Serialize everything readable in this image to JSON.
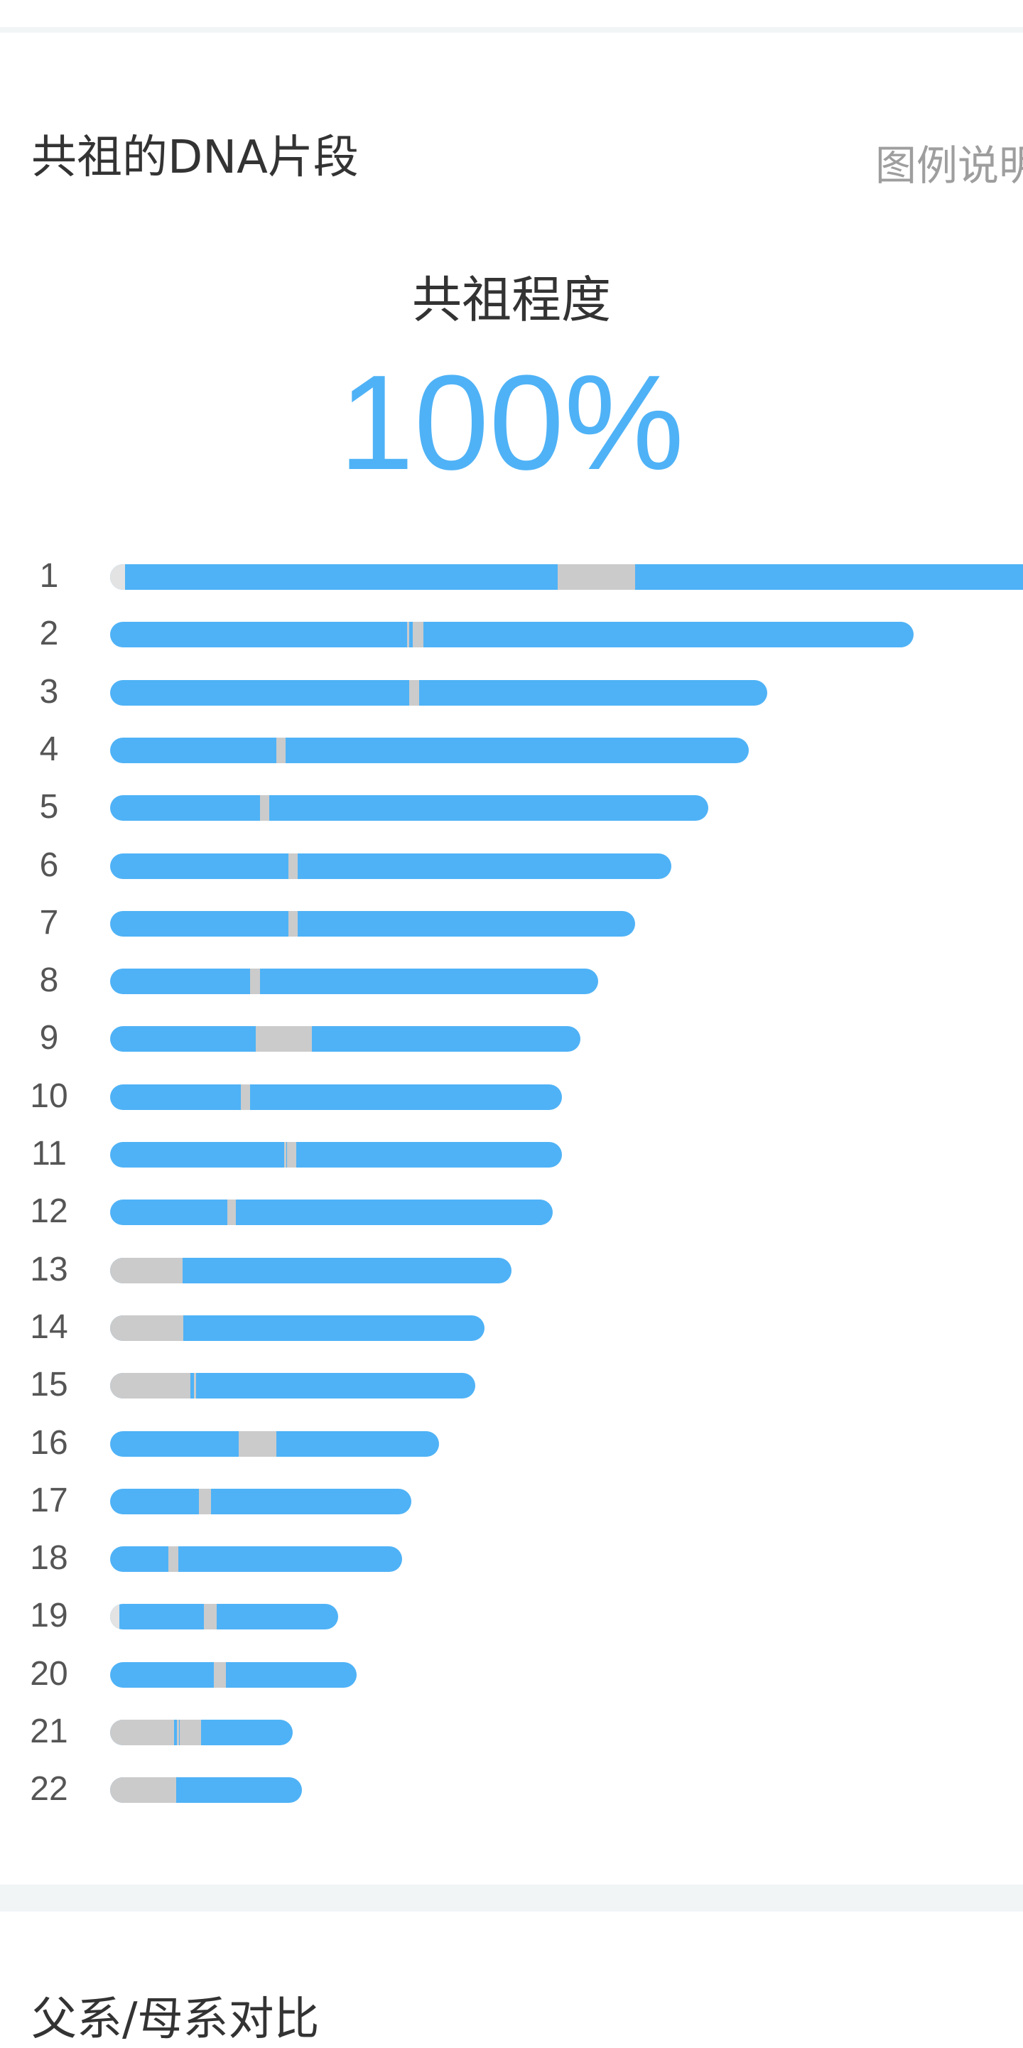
{
  "card": {
    "title": "共祖的DNA片段",
    "legend_link": "图例说明"
  },
  "metric": {
    "label": "共祖程度",
    "value": "100%"
  },
  "chart_data": {
    "type": "bar",
    "colors": {
      "shared": "#4fb2f6",
      "gap": "#cbcbcb",
      "light_gap": "#e3e3e3"
    },
    "chromosomes": [
      {
        "label": "1",
        "length": 1.0,
        "gaps": [
          [
            0.0,
            0.016,
            "light"
          ],
          [
            0.49,
            0.575,
            "gray"
          ]
        ]
      },
      {
        "label": "2",
        "length": 0.88,
        "gaps": [
          [
            0.37,
            0.373,
            "gray"
          ],
          [
            0.377,
            0.39,
            "gray"
          ]
        ]
      },
      {
        "label": "3",
        "length": 0.72,
        "gaps": [
          [
            0.455,
            0.47,
            "gray"
          ]
        ]
      },
      {
        "label": "4",
        "length": 0.7,
        "gaps": [
          [
            0.26,
            0.275,
            "gray"
          ]
        ]
      },
      {
        "label": "5",
        "length": 0.655,
        "gaps": [
          [
            0.25,
            0.266,
            "gray"
          ]
        ]
      },
      {
        "label": "6",
        "length": 0.615,
        "gaps": [
          [
            0.318,
            0.335,
            "gray"
          ]
        ]
      },
      {
        "label": "7",
        "length": 0.575,
        "gaps": [
          [
            0.34,
            0.358,
            "gray"
          ]
        ]
      },
      {
        "label": "8",
        "length": 0.535,
        "gaps": [
          [
            0.287,
            0.307,
            "gray"
          ]
        ]
      },
      {
        "label": "9",
        "length": 0.515,
        "gaps": [
          [
            0.31,
            0.43,
            "gray"
          ]
        ]
      },
      {
        "label": "10",
        "length": 0.495,
        "gaps": [
          [
            0.29,
            0.31,
            "gray"
          ]
        ]
      },
      {
        "label": "11",
        "length": 0.495,
        "gaps": [
          [
            0.386,
            0.39,
            "gray"
          ],
          [
            0.392,
            0.412,
            "gray"
          ]
        ]
      },
      {
        "label": "12",
        "length": 0.485,
        "gaps": [
          [
            0.265,
            0.285,
            "gray"
          ]
        ]
      },
      {
        "label": "13",
        "length": 0.44,
        "gaps": [
          [
            0.0,
            0.18,
            "gray"
          ]
        ]
      },
      {
        "label": "14",
        "length": 0.41,
        "gaps": [
          [
            0.0,
            0.195,
            "gray"
          ]
        ]
      },
      {
        "label": "15",
        "length": 0.4,
        "gaps": [
          [
            0.0,
            0.22,
            "gray"
          ],
          [
            0.23,
            0.235,
            "gray"
          ]
        ]
      },
      {
        "label": "16",
        "length": 0.36,
        "gaps": [
          [
            0.39,
            0.505,
            "gray"
          ]
        ]
      },
      {
        "label": "17",
        "length": 0.33,
        "gaps": [
          [
            0.295,
            0.335,
            "gray"
          ]
        ]
      },
      {
        "label": "18",
        "length": 0.32,
        "gaps": [
          [
            0.2,
            0.235,
            "gray"
          ]
        ]
      },
      {
        "label": "19",
        "length": 0.25,
        "gaps": [
          [
            0.0,
            0.04,
            "light"
          ],
          [
            0.41,
            0.465,
            "gray"
          ]
        ]
      },
      {
        "label": "20",
        "length": 0.27,
        "gaps": [
          [
            0.42,
            0.47,
            "gray"
          ]
        ]
      },
      {
        "label": "21",
        "length": 0.2,
        "gaps": [
          [
            0.0,
            0.35,
            "gray"
          ],
          [
            0.365,
            0.37,
            "gray"
          ],
          [
            0.38,
            0.495,
            "gray"
          ]
        ]
      },
      {
        "label": "22",
        "length": 0.21,
        "gaps": [
          [
            0.0,
            0.345,
            "gray"
          ]
        ]
      }
    ]
  },
  "section2": {
    "title": "父系/母系对比"
  }
}
